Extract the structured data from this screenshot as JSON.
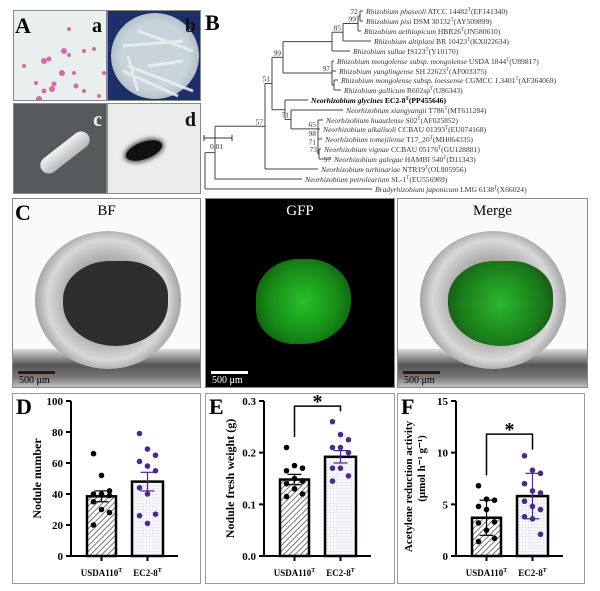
{
  "panelA": {
    "label": "A",
    "sub": [
      "a",
      "b",
      "c",
      "d"
    ]
  },
  "panelB": {
    "label": "B",
    "scale_label": "0.01",
    "taxa": [
      {
        "genus": "Rhizobium",
        "species": "phaseoli",
        "strain": " ATCC 14482",
        "acc": "(EF141340)"
      },
      {
        "genus": "Rhizobium",
        "species": "pisi",
        "strain": " DSM 30132",
        "acc": "(AY509899)"
      },
      {
        "genus": "Rhizobium",
        "species": "aethiopicum",
        "strain": " HBR26",
        "acc": "(JN580610)"
      },
      {
        "genus": "Rhizobium",
        "species": "altiplani",
        "strain": " BR 10423",
        "acc": "(KX022634)"
      },
      {
        "genus": "Rhizobium",
        "species": "sullae",
        "strain": " IS123",
        "acc": "(Y10170)"
      },
      {
        "genus": "Rhizobium",
        "species": "mongolense subsp. mongolense",
        "strain": " USDA 1844",
        "acc": "(U89817)"
      },
      {
        "genus": "Rhizobium",
        "species": "yanglingense",
        "strain": " SH 22623",
        "acc": "(AF003375)"
      },
      {
        "genus": "Rhizobium",
        "species": "mongolense subsp. loessense",
        "strain": " CGMCC 1.3401",
        "acc": "(AF364069)"
      },
      {
        "genus": "Rhizobium",
        "species": "gallicum",
        "strain": " R602sp",
        "acc": "(U86343)"
      },
      {
        "genus": "Neorhizobium",
        "species": "glycines",
        "strain": " EC2-8",
        "acc": "(PP455646)",
        "bold": true
      },
      {
        "genus": "Neorhizobium",
        "species": "xiangyangii",
        "strain": " T786",
        "acc": "(MT611284)"
      },
      {
        "genus": "Neorhizobium",
        "species": "huautlense",
        "strain": " S02",
        "acc": "(AF025852)"
      },
      {
        "genus": "Neorhizobium",
        "species": "alkalisoli",
        "strain": " CCBAU 01393",
        "acc": "(EU074168)"
      },
      {
        "genus": "Neorhizobium",
        "species": "tomejilense",
        "strain": " T17_20",
        "acc": "(MH064335)"
      },
      {
        "genus": "Neorhizobium",
        "species": "vignae",
        "strain": " CCBAU 05176",
        "acc": "(GU128881)"
      },
      {
        "genus": "Neorhizobium",
        "species": "galegae",
        "strain": " HAMBI 540",
        "acc": "(D11343)"
      },
      {
        "genus": "Neorhizobium",
        "species": "turbinariae",
        "strain": " NTR19",
        "acc": "(OL905956)"
      },
      {
        "genus": "Neorhizobium",
        "species": "petrolearium",
        "strain": " SL-1",
        "acc": "(EU556969)"
      },
      {
        "genus": "Bradyrhizobium",
        "species": "japonicum",
        "strain": " LMG 6138",
        "acc": "(X66024)"
      }
    ],
    "type_mark": "T",
    "bootstrap": {
      "n72": "72",
      "n99a": "99",
      "n85": "85",
      "nRhiz": "99",
      "nr2": "97",
      "nC": "51",
      "nB": "57",
      "n71": "71",
      "n65": "65",
      "n98": "98",
      "n71b": "71",
      "n73": "73",
      "n57b": "57"
    }
  },
  "panelC": {
    "label": "C",
    "titles": [
      "BF",
      "GFP",
      "Merge"
    ],
    "scale_label": "500 μm"
  },
  "chart_data": [
    {
      "panel": "D",
      "type": "bar",
      "categories": [
        "USDA110",
        "EC2-8"
      ],
      "cat_sup": "T",
      "ylabel": "Nodule number",
      "ylim": [
        0,
        100
      ],
      "yticks": [
        0,
        20,
        40,
        60,
        80,
        100
      ],
      "ytick_labels": [
        "0",
        "20",
        "40",
        "60",
        "80",
        "100"
      ],
      "series": [
        {
          "values": [
            38.5,
            48
          ]
        }
      ],
      "errors": [
        3.5,
        6
      ],
      "points": [
        [
          66,
          52,
          42,
          40,
          40,
          39,
          35,
          30,
          28,
          20
        ],
        [
          79,
          69,
          65,
          61,
          58,
          55,
          44,
          40,
          27,
          26,
          21
        ]
      ],
      "significance": ""
    },
    {
      "panel": "E",
      "type": "bar",
      "categories": [
        "USDA110",
        "EC2-8"
      ],
      "cat_sup": "T",
      "ylabel": "Nodule fresh weight (g)",
      "ylim": [
        0,
        0.3
      ],
      "yticks": [
        0,
        0.1,
        0.2,
        0.3
      ],
      "ytick_labels": [
        "0.0",
        "0.1",
        "0.2",
        "0.3"
      ],
      "series": [
        {
          "values": [
            0.148,
            0.192
          ]
        }
      ],
      "errors": [
        0.01,
        0.012
      ],
      "points": [
        [
          0.21,
          0.175,
          0.17,
          0.165,
          0.15,
          0.145,
          0.14,
          0.13,
          0.12,
          0.115
        ],
        [
          0.26,
          0.235,
          0.225,
          0.21,
          0.21,
          0.2,
          0.17,
          0.17,
          0.155,
          0.145
        ]
      ],
      "significance": "*"
    },
    {
      "panel": "F",
      "type": "bar",
      "categories": [
        "USDA110",
        "EC2-8"
      ],
      "cat_sup": "T",
      "ylabel": "Acetylene reduction activity",
      "ylabel2": "(μmol h⁻¹ g⁻¹)",
      "ylim": [
        0,
        15
      ],
      "yticks": [
        0,
        5,
        10,
        15
      ],
      "ytick_labels": [
        "0",
        "5",
        "10",
        "15"
      ],
      "series": [
        {
          "values": [
            3.7,
            5.8
          ]
        }
      ],
      "errors": [
        1.7,
        2.2
      ],
      "points": [
        [
          6.8,
          5.5,
          5.4,
          4.8,
          4.5,
          3.3,
          3.2,
          2.5,
          1.7,
          1.4
        ],
        [
          9.7,
          8.3,
          8.0,
          7.0,
          6.3,
          6.1,
          5.3,
          4.8,
          4.5,
          3.8,
          3.6,
          2.1
        ]
      ],
      "significance": "*"
    }
  ],
  "colors": {
    "usda_points": "#000000",
    "ec_points": "#4b2a86",
    "gfp": "#2bd62b"
  }
}
